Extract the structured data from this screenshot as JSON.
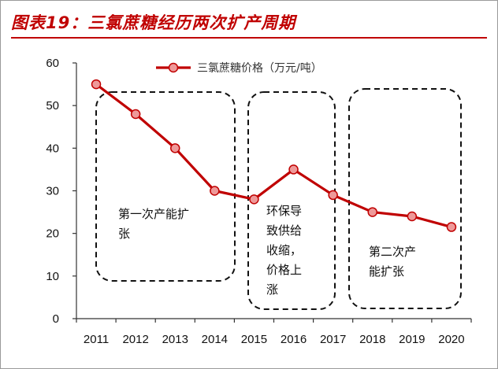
{
  "title": "图表19：三氯蔗糖经历两次扩产周期",
  "colors": {
    "accent": "#c00000",
    "line": "#c00000",
    "marker_fill": "#ee9999",
    "box": "#111111"
  },
  "chart_data": {
    "type": "line",
    "x": [
      "2011",
      "2012",
      "2013",
      "2014",
      "2015",
      "2016",
      "2017",
      "2018",
      "2019",
      "2020"
    ],
    "series": [
      {
        "name": "三氯蔗糖价格（万元/吨）",
        "values": [
          55,
          48,
          40,
          30,
          28,
          35,
          29,
          25,
          24,
          21.5
        ]
      }
    ],
    "ylim": [
      0,
      60
    ],
    "yticks": [
      "0",
      "10",
      "20",
      "30",
      "40",
      "50",
      "60"
    ],
    "grid": false,
    "legend": "top-center",
    "annotations": [
      {
        "lines": [
          "第一次产能扩",
          "张"
        ],
        "range": [
          "2011",
          "2014"
        ]
      },
      {
        "lines": [
          "环保导",
          "致供给",
          "收缩，",
          "价格上",
          "涨"
        ],
        "range": [
          "2015",
          "2016"
        ]
      },
      {
        "lines": [
          "第二次产",
          "能扩张"
        ],
        "range": [
          "2018",
          "2020"
        ]
      }
    ]
  }
}
